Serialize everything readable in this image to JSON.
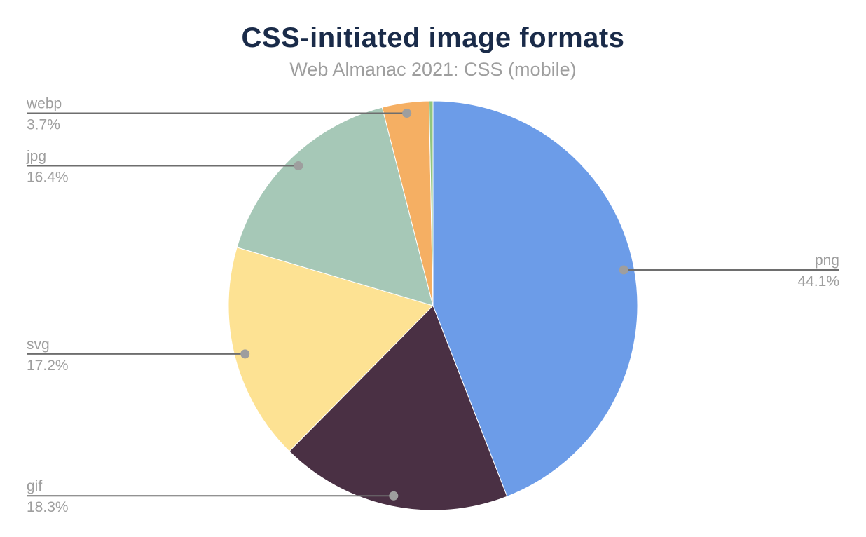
{
  "title": "CSS-initiated image formats",
  "subtitle": "Web Almanac 2021: CSS (mobile)",
  "chart_data": {
    "type": "pie",
    "title": "CSS-initiated image formats",
    "subtitle": "Web Almanac 2021: CSS (mobile)",
    "unit": "%",
    "start_angle_deg": 0,
    "direction": "clockwise",
    "legend_position": "none",
    "labels_style": "callout-name-and-percent",
    "slices": [
      {
        "label": "png",
        "value": 44.1,
        "color": "#6C9CE8",
        "label_side": "right"
      },
      {
        "label": "gif",
        "value": 18.3,
        "color": "#4A3044",
        "label_side": "left"
      },
      {
        "label": "svg",
        "value": 17.2,
        "color": "#FDE293",
        "label_side": "left"
      },
      {
        "label": "jpg",
        "value": 16.4,
        "color": "#A6C8B7",
        "label_side": "left"
      },
      {
        "label": "webp",
        "value": 3.7,
        "color": "#F5AF63",
        "label_side": "left"
      },
      {
        "label": "",
        "value": 0.3,
        "color": "#90C57F",
        "label_side": "none"
      }
    ]
  },
  "colors": {
    "background": "#FFFFFF",
    "title_text": "#1A2B49",
    "subtitle_text": "#9E9E9E",
    "label_text": "#9E9E9E",
    "leader_line": "#6E6E6E",
    "leader_dot": "#9E9E9E",
    "slice_border": "#FFFFFF"
  }
}
